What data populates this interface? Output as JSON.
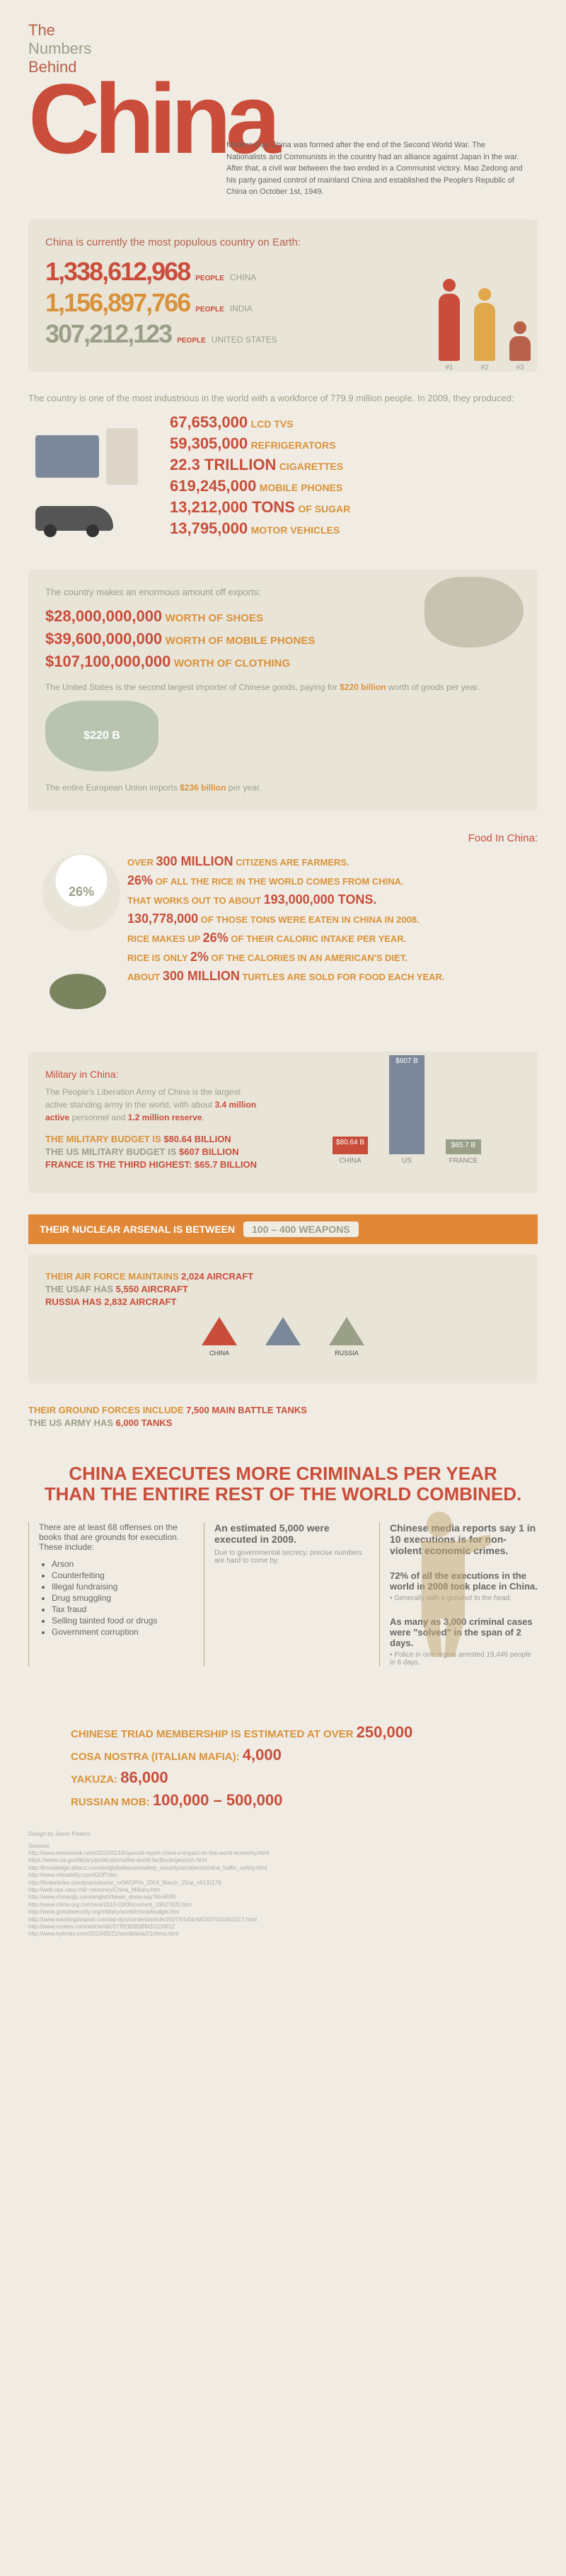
{
  "title": {
    "the": "The",
    "numbers": "Numbers",
    "behind": "Behind",
    "china": "China"
  },
  "intro": "Modern Day China was formed after the end of the Second World War. The Nationalists and Communists in the country had an alliance against Japan in the war. After that, a civil war between the two ended in a Communist victory. Mao Zedong and his party gained control of mainland China and established the People's Republic of China on October 1st, 1949.",
  "population": {
    "header": "China is currently the most populous country on Earth:",
    "rows": [
      {
        "value": "1,338,612,968",
        "people": "PEOPLE",
        "country": "CHINA",
        "color": "#c94d3a",
        "fig_h": 95,
        "fig_color": "#c94d3a",
        "rank": "#1"
      },
      {
        "value": "1,156,897,766",
        "people": "PEOPLE",
        "country": "INDIA",
        "color": "#d9923a",
        "fig_h": 82,
        "fig_color": "#e0a84a",
        "rank": "#2"
      },
      {
        "value": "307,212,123",
        "people": "PEOPLE",
        "country": "UNITED STATES",
        "color": "#9aa088",
        "fig_h": 35,
        "fig_color": "#b8614a",
        "rank": "#3"
      }
    ]
  },
  "industry": {
    "intro": "The country is one of the most industrious in the world with a workforce of 779.9 million people. In 2009, they produced:",
    "stats": [
      {
        "num": "67,653,000",
        "label": "LCD TVS"
      },
      {
        "num": "59,305,000",
        "label": "REFRIGERATORS"
      },
      {
        "num": "22.3 TRILLION",
        "label": "CIGARETTES"
      },
      {
        "num": "619,245,000",
        "label": "MOBILE PHONES"
      },
      {
        "num": "13,212,000 TONS",
        "label": "OF SUGAR"
      },
      {
        "num": "13,795,000",
        "label": "MOTOR VEHICLES"
      }
    ]
  },
  "exports": {
    "intro": "The country makes an enormous amount off exports:",
    "rows": [
      {
        "num": "$28,000,000,000",
        "label": "WORTH OF SHOES"
      },
      {
        "num": "$39,600,000,000",
        "label": "WORTH OF MOBILE PHONES"
      },
      {
        "num": "$107,100,000,000",
        "label": "WORTH OF CLOTHING"
      }
    ],
    "note1a": "The United States is the second largest importer of Chinese goods, paying for ",
    "note1b": "$220 billion",
    "note1c": " worth of goods per year.",
    "note2a": "The entire European Union imports ",
    "note2b": "$236 billion",
    "note2c": " per year.",
    "usa_badge": "$220 B"
  },
  "food": {
    "header": "Food In China:",
    "rice_pct": "26%",
    "rows": [
      {
        "pre": "OVER ",
        "big": "300 MILLION",
        "post": " CITIZENS ARE FARMERS."
      },
      {
        "pre": "",
        "big": "26%",
        "post": " OF ALL THE RICE IN THE WORLD COMES FROM CHINA."
      },
      {
        "pre": "THAT WORKS OUT TO ABOUT ",
        "big": "193,000,000 TONS.",
        "post": ""
      },
      {
        "pre": "",
        "big": "130,778,000",
        "post": " OF THOSE TONS WERE EATEN IN CHINA IN 2008."
      },
      {
        "pre": "RICE MAKES UP ",
        "big": "26%",
        "post": " OF THEIR CALORIC INTAKE PER YEAR."
      },
      {
        "pre": "RICE IS ONLY ",
        "big": "2%",
        "post": " OF THE CALORIES IN AN AMERICAN'S DIET."
      },
      {
        "pre": "ABOUT ",
        "big": "300 MILLION",
        "post": " TURTLES ARE SOLD FOR FOOD EACH YEAR."
      }
    ]
  },
  "military": {
    "header": "Military in China:",
    "text": "The People's Liberation Army of China is the largest active standing army in the world, with about 3.4 million active personnel and 1.2 million reserve.",
    "highlights": [
      "3.4 million active",
      "1.2 million reserve"
    ],
    "budget": [
      {
        "text": "THE MILITARY BUDGET IS ",
        "val": "$80.64 BILLION",
        "color": "#d9923a"
      },
      {
        "text": "THE US MILITARY BUDGET IS ",
        "val": "$607 BILLION",
        "color": "#9aa088"
      },
      {
        "text": "FRANCE IS THE THIRD HIGHEST: ",
        "val": "$65.7 BILLION",
        "color": "#c94d3a"
      }
    ],
    "chart": [
      {
        "label": "CHINA",
        "val": "$80.64 B",
        "h": 25,
        "color": "#c94d3a"
      },
      {
        "label": "US",
        "val": "$607 B",
        "h": 140,
        "color": "#7a8899"
      },
      {
        "label": "FRANCE",
        "val": "$65.7 B",
        "h": 21,
        "color": "#9aa088"
      }
    ],
    "nuclear_text": "THEIR NUCLEAR ARSENAL IS BETWEEN",
    "nuclear_val": "100 – 400 WEAPONS",
    "aircraft": [
      {
        "text": "THEIR AIR FORCE MAINTAINS ",
        "val": "2,024 AIRCRAFT",
        "color": "#d9923a"
      },
      {
        "text": "THE USAF HAS ",
        "val": "5,550 AIRCRAFT",
        "color": "#9aa088"
      },
      {
        "text": "RUSSIA HAS ",
        "val": "2,832 AIRCRAFT",
        "color": "#c94d3a"
      }
    ],
    "jets": [
      {
        "label": "CHINA",
        "color": "#c94d3a"
      },
      {
        "label": "",
        "color": "#7a8899"
      },
      {
        "label": "RUSSIA",
        "color": "#9aa088"
      }
    ],
    "tanks": [
      {
        "text": "THEIR GROUND FORCES INCLUDE ",
        "val": "7,500 MAIN BATTLE TANKS",
        "color": "#d9923a"
      },
      {
        "text": "THE US ARMY HAS ",
        "val": "6,000 TANKS",
        "color": "#9aa088"
      }
    ]
  },
  "criminals": {
    "header1": "CHINA EXECUTES MORE CRIMINALS PER YEAR",
    "header2": "THAN THE ENTIRE REST OF THE WORLD COMBINED.",
    "col1": {
      "head": "An estimated 5,000 were executed in 2009.",
      "sub": "Due to governmental secrecy, precise numbers are hard to come by."
    },
    "col2": {
      "head": "Chinese media reports say 1 in 10 executions is for non-violent economic crimes."
    },
    "offenses_intro": "There are at least 68 offenses on the books that are grounds for execution. These include:",
    "offenses": [
      "Arson",
      "Counterfeiting",
      "Illegal fundraising",
      "Drug smuggling",
      "Tax fraud",
      "Selling tainted food or drugs",
      "Government corruption"
    ],
    "pct72": "72% of all the executions in the world in 2008 took place in China.",
    "pct72_sub": "Generally with a gunshot to the head.",
    "solved": "As many as 3,000 criminal cases were \"solved\" in the span of 2 days.",
    "solved_sub": "Police in one region arrested 19,446 people in 6 days."
  },
  "triad": {
    "rows": [
      {
        "label": "CHINESE TRIAD MEMBERSHIP IS ESTIMATED AT OVER ",
        "num": "250,000"
      },
      {
        "label": "COSA NOSTRA (ITALIAN MAFIA): ",
        "num": "4,000"
      },
      {
        "label": "YAKUZA: ",
        "num": "86,000"
      },
      {
        "label": "RUSSIAN MOB: ",
        "num": "100,000 – 500,000"
      }
    ]
  },
  "sources": {
    "design": "Design by Jason Powers",
    "label": "Sources:",
    "lines": [
      "http://www.newsweek.com/2010/01/18/special-report-china-s-impact-on-the-world-economy.html",
      "https://www.cia.gov/library/publications/the-world-factbook/geos/ch.html",
      "http://knowledge.allianz.com/en/globalissues/safety_security/accidents/china_traffic_safety.html",
      "http://www.chinability.com/GDP.htm",
      "http://findarticles.com/p/articles/mi_m0WDP/is_2004_March_15/ai_n6131176",
      "http://web.nps.navy.mil/~relooney/China_Military.htm",
      "http://www.chinacjip.com/english/News_show.asp?id=6599",
      "http://www.china.org.cn/china/2010-03/05/content_19527820.htm",
      "http://www.globalsecurity.org/military/world/china/budget.htm",
      "http://www.washingtonpost.com/wp-dyn/content/article/2007/01/04/AR2007010401517.html",
      "http://www.reuters.com/article/idUSTRE65B0BM20100612",
      "http://www.nytimes.com/2010/05/21/world/asia/21china.html"
    ]
  },
  "colors": {
    "bg": "#f0ece3",
    "box": "#e9e4d8",
    "red": "#c94d3a",
    "orange": "#d9923a",
    "olive": "#9aa088",
    "brown": "#b8614a"
  }
}
